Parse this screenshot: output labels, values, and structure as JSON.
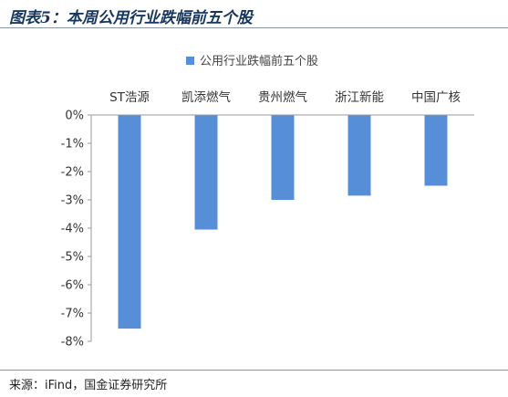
{
  "figure": {
    "title": "图表5：本周公用行业跌幅前五个股",
    "source": "来源：iFind，国金证券研究所"
  },
  "colors": {
    "bar": "#568fd8",
    "axis": "#9a9a9a",
    "title": "#17375e"
  },
  "chart_data": {
    "type": "bar",
    "title": "",
    "xlabel": "",
    "ylabel": "",
    "categories": [
      "ST浩源",
      "凯添燃气",
      "贵州燃气",
      "浙江新能",
      "中国广核"
    ],
    "series": [
      {
        "name": "公用行业跌幅前五个股",
        "values": [
          -7.55,
          -4.05,
          -3.0,
          -2.85,
          -2.5
        ]
      }
    ],
    "ylim": [
      -8,
      0
    ],
    "yticks": [
      0,
      -1,
      -2,
      -3,
      -4,
      -5,
      -6,
      -7,
      -8
    ],
    "ytick_labels": [
      "0%",
      "-1%",
      "-2%",
      "-3%",
      "-4%",
      "-5%",
      "-6%",
      "-7%",
      "-8%"
    ],
    "category_axis_position": "top",
    "legend_position": "top",
    "grid": false
  }
}
